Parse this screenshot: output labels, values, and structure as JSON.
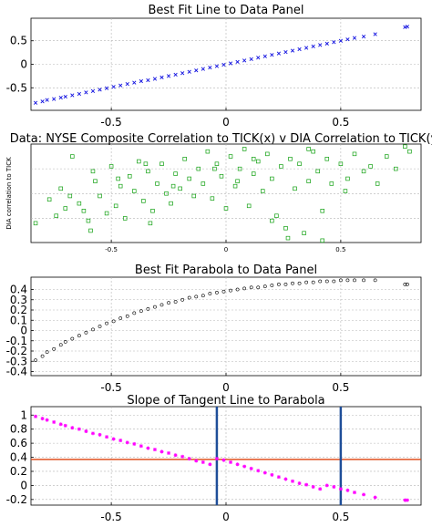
{
  "chart_data": [
    {
      "type": "scatter",
      "title": "Best Fit Line to Data Panel",
      "xlabel": "",
      "ylabel": "",
      "xlim": [
        -0.85,
        0.85
      ],
      "ylim": [
        -0.98,
        0.98
      ],
      "xticks": [
        "-0.5",
        "0",
        "0.5"
      ],
      "yticks": [
        "0.5",
        "0",
        "-0.5"
      ],
      "grid": true,
      "color": "#1010e0",
      "marker": "x",
      "series": [
        {
          "x": [
            -0.83,
            -0.8,
            -0.78,
            -0.75,
            -0.72,
            -0.7,
            -0.67,
            -0.64,
            -0.61,
            -0.58,
            -0.55,
            -0.52,
            -0.49,
            -0.46,
            -0.43,
            -0.4,
            -0.37,
            -0.34,
            -0.31,
            -0.28,
            -0.25,
            -0.22,
            -0.19,
            -0.16,
            -0.13,
            -0.1,
            -0.07,
            -0.04,
            -0.01,
            0.02,
            0.05,
            0.08,
            0.11,
            0.14,
            0.17,
            0.2,
            0.23,
            0.26,
            0.29,
            0.32,
            0.35,
            0.38,
            0.41,
            0.44,
            0.47,
            0.5,
            0.53,
            0.56,
            0.6,
            0.65,
            0.78,
            0.79
          ],
          "y": [
            -0.82,
            -0.79,
            -0.76,
            -0.74,
            -0.71,
            -0.69,
            -0.66,
            -0.63,
            -0.6,
            -0.57,
            -0.54,
            -0.51,
            -0.48,
            -0.45,
            -0.42,
            -0.39,
            -0.36,
            -0.34,
            -0.31,
            -0.28,
            -0.25,
            -0.22,
            -0.19,
            -0.16,
            -0.13,
            -0.1,
            -0.07,
            -0.04,
            -0.01,
            0.02,
            0.05,
            0.08,
            0.11,
            0.14,
            0.17,
            0.2,
            0.23,
            0.26,
            0.29,
            0.32,
            0.35,
            0.38,
            0.41,
            0.44,
            0.47,
            0.5,
            0.53,
            0.56,
            0.59,
            0.64,
            0.79,
            0.8
          ]
        }
      ]
    },
    {
      "type": "scatter",
      "title": "Data: NYSE Composite Correlation to TICK(x) v DIA Correlation to TICK(y)",
      "xlabel": "",
      "ylabel": "DIA correlation to TICK",
      "xlim": [
        -0.85,
        0.85
      ],
      "ylim": [
        -0.99,
        1.0
      ],
      "xticks": [
        "-0.5",
        "0",
        "0.5"
      ],
      "yticks": [],
      "grid": true,
      "color": "#10a010",
      "marker": "square",
      "series": [
        {
          "x": [
            -0.83,
            -0.77,
            -0.74,
            -0.72,
            -0.7,
            -0.67,
            -0.64,
            -0.62,
            -0.6,
            -0.59,
            -0.57,
            -0.55,
            -0.52,
            -0.5,
            -0.48,
            -0.46,
            -0.44,
            -0.42,
            -0.4,
            -0.38,
            -0.36,
            -0.34,
            -0.32,
            -0.3,
            -0.28,
            -0.26,
            -0.24,
            -0.22,
            -0.2,
            -0.18,
            -0.16,
            -0.14,
            -0.12,
            -0.1,
            -0.08,
            -0.06,
            -0.04,
            -0.02,
            0.0,
            0.02,
            0.04,
            0.06,
            0.08,
            0.1,
            0.12,
            0.14,
            0.16,
            0.18,
            0.2,
            0.22,
            0.24,
            0.26,
            0.28,
            0.3,
            0.32,
            0.34,
            0.36,
            0.38,
            0.4,
            0.42,
            0.44,
            0.46,
            0.5,
            0.53,
            0.56,
            0.6,
            0.63,
            0.66,
            0.7,
            0.74,
            0.78,
            0.8,
            -0.58,
            -0.47,
            -0.35,
            -0.23,
            -0.05,
            0.12,
            0.2,
            0.36,
            0.42,
            -0.68,
            -0.33,
            0.05,
            0.27,
            0.52
          ],
          "y": [
            -0.6,
            -0.12,
            -0.45,
            0.1,
            -0.3,
            0.75,
            -0.2,
            -0.35,
            -0.55,
            -0.75,
            0.25,
            -0.05,
            -0.4,
            0.55,
            -0.25,
            0.15,
            -0.5,
            0.35,
            0.05,
            0.65,
            -0.15,
            0.45,
            -0.35,
            0.2,
            0.6,
            0.0,
            -0.2,
            0.4,
            0.1,
            0.7,
            0.3,
            -0.05,
            0.5,
            0.2,
            0.85,
            -0.1,
            0.6,
            0.35,
            -0.3,
            0.75,
            0.15,
            0.5,
            0.9,
            -0.25,
            0.4,
            0.65,
            0.05,
            0.8,
            0.3,
            -0.45,
            0.55,
            -0.7,
            0.7,
            0.1,
            0.6,
            -0.8,
            0.25,
            0.85,
            0.45,
            -0.35,
            0.7,
            0.2,
            0.6,
            0.3,
            0.8,
            0.45,
            0.55,
            0.2,
            0.75,
            0.5,
            0.95,
            0.85,
            0.45,
            0.3,
            0.6,
            0.15,
            0.5,
            0.7,
            -0.55,
            0.9,
            -0.95,
            -0.05,
            -0.6,
            0.25,
            -0.9,
            0.05
          ]
        }
      ]
    },
    {
      "type": "scatter",
      "title": "Best Fit Parabola to Data Panel",
      "xlabel": "",
      "ylabel": "",
      "xlim": [
        -0.85,
        0.85
      ],
      "ylim": [
        -0.44,
        0.52
      ],
      "xticks": [
        "-0.5",
        "0",
        "0.5"
      ],
      "yticks": [
        "0.4",
        "0.3",
        "0.2",
        "0.1",
        "0",
        "-0.1",
        "-0.2",
        "-0.3",
        "-0.4"
      ],
      "grid": true,
      "color": "#000000",
      "marker": "circle",
      "series": [
        {
          "x": [
            -0.83,
            -0.8,
            -0.78,
            -0.75,
            -0.72,
            -0.7,
            -0.67,
            -0.64,
            -0.61,
            -0.58,
            -0.55,
            -0.52,
            -0.49,
            -0.46,
            -0.43,
            -0.4,
            -0.37,
            -0.34,
            -0.31,
            -0.28,
            -0.25,
            -0.22,
            -0.19,
            -0.16,
            -0.13,
            -0.1,
            -0.07,
            -0.04,
            -0.01,
            0.02,
            0.05,
            0.08,
            0.11,
            0.14,
            0.17,
            0.2,
            0.23,
            0.26,
            0.29,
            0.32,
            0.35,
            0.38,
            0.41,
            0.44,
            0.47,
            0.5,
            0.53,
            0.56,
            0.6,
            0.65,
            0.78,
            0.79
          ],
          "y": [
            -0.29,
            -0.25,
            -0.21,
            -0.18,
            -0.14,
            -0.11,
            -0.08,
            -0.05,
            -0.02,
            0.01,
            0.04,
            0.07,
            0.09,
            0.12,
            0.14,
            0.17,
            0.19,
            0.21,
            0.23,
            0.25,
            0.27,
            0.28,
            0.3,
            0.32,
            0.33,
            0.34,
            0.36,
            0.37,
            0.38,
            0.39,
            0.4,
            0.41,
            0.42,
            0.42,
            0.43,
            0.44,
            0.45,
            0.45,
            0.46,
            0.46,
            0.47,
            0.47,
            0.48,
            0.48,
            0.48,
            0.49,
            0.49,
            0.49,
            0.49,
            0.49,
            0.45,
            0.45
          ]
        }
      ]
    },
    {
      "type": "scatter",
      "title": "Slope of Tangent Line to Parabola",
      "xlabel": "",
      "ylabel": "",
      "xlim": [
        -0.85,
        0.85
      ],
      "ylim": [
        -0.28,
        1.12
      ],
      "xticks": [
        "-0.5",
        "0",
        "0.5"
      ],
      "yticks": [
        "1",
        "0.8",
        "0.6",
        "0.4",
        "0.2",
        "0",
        "-0.2"
      ],
      "grid": true,
      "color": "#ff00ff",
      "marker": "star",
      "hline": {
        "y": 0.37,
        "color": "#e05020"
      },
      "vlines": [
        {
          "x": -0.04,
          "color": "#1f4e99"
        },
        {
          "x": 0.5,
          "color": "#1f4e99"
        }
      ],
      "series": [
        {
          "x": [
            -0.93,
            -0.83,
            -0.8,
            -0.78,
            -0.75,
            -0.72,
            -0.7,
            -0.67,
            -0.64,
            -0.61,
            -0.58,
            -0.55,
            -0.52,
            -0.49,
            -0.46,
            -0.43,
            -0.4,
            -0.37,
            -0.34,
            -0.31,
            -0.28,
            -0.25,
            -0.22,
            -0.19,
            -0.16,
            -0.13,
            -0.1,
            -0.07,
            -0.04,
            -0.01,
            0.02,
            0.05,
            0.08,
            0.11,
            0.14,
            0.17,
            0.2,
            0.23,
            0.26,
            0.29,
            0.32,
            0.35,
            0.38,
            0.41,
            0.44,
            0.47,
            0.5,
            0.53,
            0.56,
            0.6,
            0.65,
            0.78,
            0.79
          ],
          "y": [
            1.07,
            0.98,
            0.95,
            0.93,
            0.9,
            0.87,
            0.85,
            0.82,
            0.8,
            0.77,
            0.74,
            0.72,
            0.69,
            0.66,
            0.64,
            0.61,
            0.59,
            0.56,
            0.53,
            0.51,
            0.48,
            0.46,
            0.43,
            0.41,
            0.38,
            0.35,
            0.33,
            0.3,
            0.38,
            0.36,
            0.33,
            0.3,
            0.27,
            0.24,
            0.21,
            0.18,
            0.15,
            0.12,
            0.09,
            0.06,
            0.03,
            0.01,
            -0.02,
            -0.05,
            0.0,
            -0.02,
            -0.05,
            -0.07,
            -0.1,
            -0.13,
            -0.17,
            -0.21,
            -0.21
          ]
        }
      ]
    }
  ]
}
